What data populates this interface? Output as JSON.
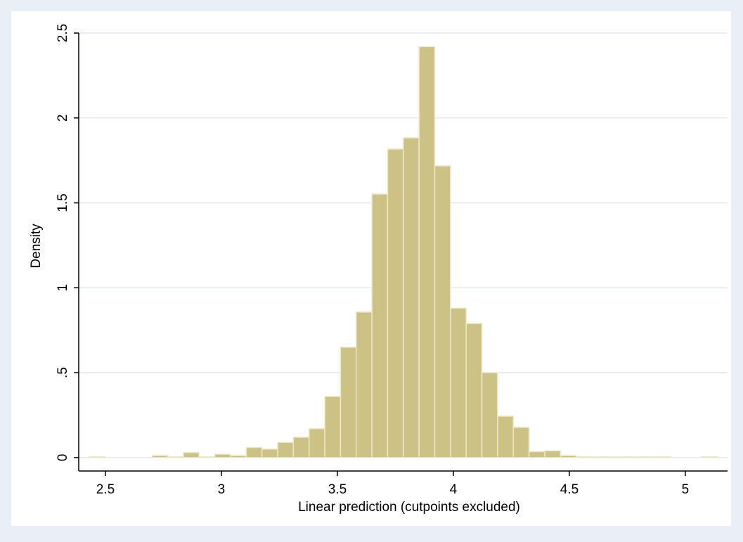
{
  "chart_data": {
    "type": "histogram",
    "xlabel": "Linear prediction (cutpoints excluded)",
    "ylabel": "Density",
    "bins": [
      2.43,
      2.4977,
      2.5654,
      2.6332,
      2.7009,
      2.7686,
      2.8363,
      2.904,
      2.9718,
      3.0395,
      3.1072,
      3.1749,
      3.2426,
      3.3104,
      3.3781,
      3.4458,
      3.5135,
      3.5812,
      3.649,
      3.7167,
      3.7844,
      3.8521,
      3.9198,
      3.9876,
      4.0553,
      4.123,
      4.1907,
      4.2584,
      4.3262,
      4.3939,
      4.4616,
      4.5293,
      4.597,
      4.6648,
      4.7325,
      4.8002,
      4.8679,
      4.9356,
      5.0034,
      5.0711,
      5.1388
    ],
    "values": [
      0.005,
      0,
      0,
      0,
      0.012,
      0.005,
      0.03,
      0.005,
      0.02,
      0.012,
      0.06,
      0.05,
      0.09,
      0.12,
      0.17,
      0.36,
      0.65,
      0.857,
      1.552,
      1.817,
      1.883,
      2.42,
      1.718,
      0.88,
      0.79,
      0.5,
      0.244,
      0.178,
      0.035,
      0.04,
      0.012,
      0.005,
      0.005,
      0.005,
      0.005,
      0.005,
      0.005,
      0,
      0,
      0.005
    ],
    "color": "#ccc285",
    "xlim": [
      2.385,
      5.182
    ],
    "ylim": [
      -0.079,
      2.5
    ],
    "xticks": [
      2.5,
      3,
      3.5,
      4,
      4.5,
      5
    ],
    "yticks": [
      0,
      {
        "value": 0.5,
        "label": ".5"
      },
      1,
      1.5,
      2,
      2.5
    ],
    "grid": true
  }
}
